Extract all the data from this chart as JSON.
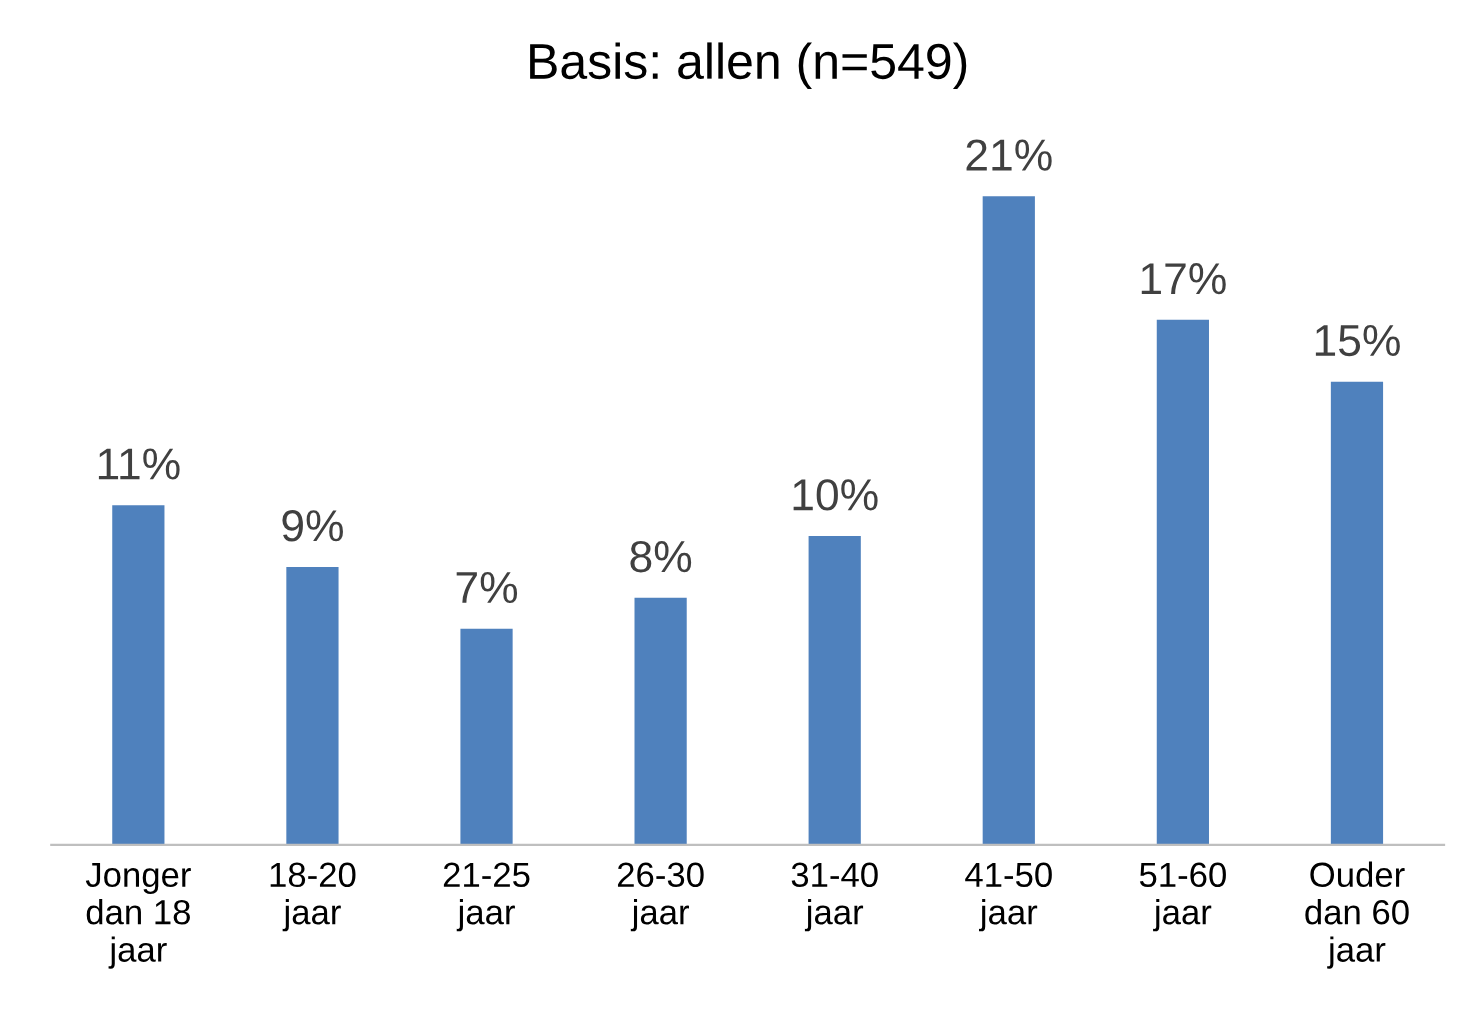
{
  "chart_data": {
    "type": "bar",
    "title": "Basis: allen (n=549)",
    "categories": [
      "Jonger\ndan 18\njaar",
      "18-20\njaar",
      "21-25\njaar",
      "26-30\njaar",
      "31-40\njaar",
      "41-50\njaar",
      "51-60\njaar",
      "Ouder\ndan 60\njaar"
    ],
    "values": [
      11,
      9,
      7,
      8,
      10,
      21,
      17,
      15
    ],
    "value_labels": [
      "11%",
      "9%",
      "7%",
      "8%",
      "10%",
      "21%",
      "17%",
      "15%"
    ],
    "color": "#4f81bd",
    "grid": false,
    "legend": false
  }
}
